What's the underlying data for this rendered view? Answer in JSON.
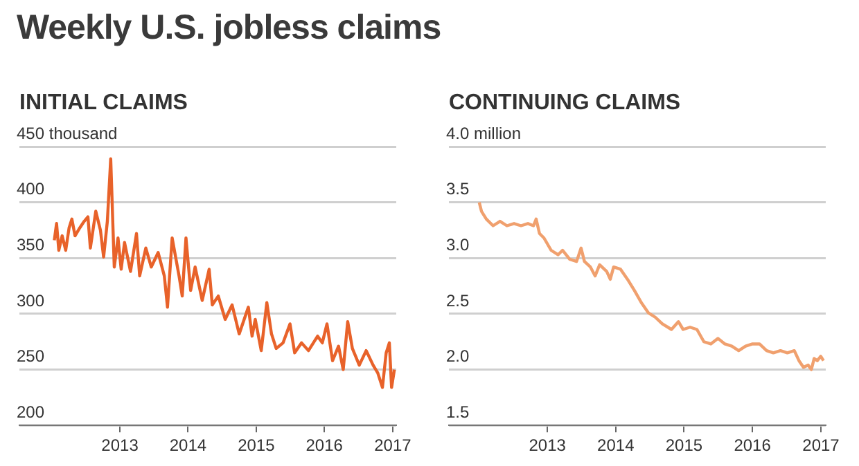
{
  "chart_data": [
    {
      "type": "line",
      "title": "INITIAL CLAIMS",
      "annotations": [
        "Weekly U.S. jobless claims"
      ],
      "color": "#e8622a",
      "grid": "y",
      "legend": false,
      "marker": "none",
      "line_style": "solid",
      "xlim": [
        "2011-07-13",
        "2017-01-20"
      ],
      "xticks": [
        "2013",
        "2014",
        "2015",
        "2016",
        "2017"
      ],
      "ylim": [
        200,
        450
      ],
      "yticks": [
        200,
        250,
        300,
        350,
        400,
        {
          "value": 450,
          "label": "450 thousand"
        }
      ],
      "x": [
        "2012-01-16",
        "2012-01-28",
        "2012-02-09",
        "2012-02-27",
        "2012-03-17",
        "2012-04-04",
        "2012-04-19",
        "2012-05-06",
        "2012-05-31",
        "2012-06-24",
        "2012-07-14",
        "2012-07-27",
        "2012-08-25",
        "2012-09-19",
        "2012-10-06",
        "2012-10-26",
        "2012-11-13",
        "2012-12-02",
        "2012-12-22",
        "2013-01-08",
        "2013-01-26",
        "2013-02-27",
        "2013-03-31",
        "2013-04-17",
        "2013-05-20",
        "2013-06-18",
        "2013-07-25",
        "2013-08-27",
        "2013-09-13",
        "2013-10-08",
        "2013-11-14",
        "2013-12-01",
        "2013-12-21",
        "2014-01-15",
        "2014-02-08",
        "2014-03-18",
        "2014-04-24",
        "2014-05-11",
        "2014-06-12",
        "2014-07-19",
        "2014-08-25",
        "2014-10-02",
        "2014-11-20",
        "2014-12-10",
        "2014-12-27",
        "2015-01-28",
        "2015-02-27",
        "2015-03-24",
        "2015-04-18",
        "2015-05-25",
        "2015-07-01",
        "2015-07-26",
        "2015-09-01",
        "2015-10-08",
        "2015-11-26",
        "2015-12-21",
        "2016-01-15",
        "2016-02-14",
        "2016-03-17",
        "2016-04-11",
        "2016-05-05",
        "2016-05-30",
        "2016-07-06",
        "2016-08-12",
        "2016-09-18",
        "2016-10-13",
        "2016-11-07",
        "2016-11-27",
        "2016-12-14",
        "2016-12-26",
        "2017-01-10"
      ],
      "values": [
        366,
        381,
        357,
        370,
        357,
        377,
        385,
        370,
        377,
        383,
        387,
        359,
        392,
        375,
        351,
        383,
        439,
        342,
        368,
        340,
        364,
        338,
        372,
        334,
        359,
        342,
        355,
        334,
        306,
        368,
        334,
        316,
        368,
        321,
        342,
        312,
        340,
        308,
        316,
        295,
        308,
        282,
        306,
        280,
        295,
        267,
        310,
        282,
        269,
        274,
        291,
        265,
        274,
        267,
        280,
        274,
        291,
        258,
        271,
        250,
        293,
        269,
        254,
        267,
        254,
        247,
        234,
        265,
        274,
        234,
        250
      ]
    },
    {
      "type": "line",
      "title": "CONTINUING CLAIMS",
      "color": "#f0a06e",
      "grid": "y",
      "legend": false,
      "marker": "none",
      "line_style": "solid",
      "xlim": [
        "2011-07-25",
        "2017-01-27"
      ],
      "xticks": [
        "2013",
        "2014",
        "2015",
        "2016",
        "2017"
      ],
      "ylim": [
        1.5,
        4.0
      ],
      "yticks": [
        {
          "value": 1.5,
          "label": "1.5"
        },
        {
          "value": 2,
          "label": "2.0"
        },
        {
          "value": 2.5,
          "label": "2.5"
        },
        {
          "value": 3,
          "label": "3.0"
        },
        {
          "value": 3.5,
          "label": "3.5"
        },
        {
          "value": 4,
          "label": "4.0 million"
        }
      ],
      "x": [
        "2012-01-03",
        "2012-01-15",
        "2012-02-10",
        "2012-03-17",
        "2012-04-23",
        "2012-05-30",
        "2012-07-07",
        "2012-08-13",
        "2012-09-19",
        "2012-10-19",
        "2012-11-02",
        "2012-11-20",
        "2012-12-14",
        "2013-01-21",
        "2013-02-27",
        "2013-03-23",
        "2013-04-30",
        "2013-06-06",
        "2013-06-30",
        "2013-07-18",
        "2013-08-19",
        "2013-09-13",
        "2013-10-07",
        "2013-11-14",
        "2013-12-03",
        "2013-12-21",
        "2014-01-27",
        "2014-03-05",
        "2014-04-11",
        "2014-05-18",
        "2014-06-24",
        "2014-07-31",
        "2014-09-07",
        "2014-10-26",
        "2014-12-02",
        "2014-12-27",
        "2015-02-02",
        "2015-03-11",
        "2015-04-17",
        "2015-05-24",
        "2015-07-01",
        "2015-08-07",
        "2015-09-13",
        "2015-10-20",
        "2015-11-26",
        "2016-01-02",
        "2016-02-08",
        "2016-03-17",
        "2016-04-22",
        "2016-05-30",
        "2016-07-06",
        "2016-08-12",
        "2016-09-06",
        "2016-09-30",
        "2016-10-25",
        "2016-11-11",
        "2016-11-26",
        "2016-12-13",
        "2016-12-31",
        "2017-01-15"
      ],
      "values": [
        3.5,
        3.42,
        3.35,
        3.29,
        3.33,
        3.29,
        3.31,
        3.29,
        3.31,
        3.29,
        3.35,
        3.22,
        3.18,
        3.07,
        3.03,
        3.07,
        2.99,
        2.97,
        3.09,
        2.97,
        2.92,
        2.84,
        2.94,
        2.88,
        2.81,
        2.92,
        2.9,
        2.81,
        2.71,
        2.6,
        2.51,
        2.47,
        2.41,
        2.36,
        2.43,
        2.36,
        2.38,
        2.36,
        2.25,
        2.23,
        2.28,
        2.23,
        2.21,
        2.17,
        2.21,
        2.23,
        2.23,
        2.17,
        2.15,
        2.17,
        2.15,
        2.17,
        2.08,
        2.02,
        2.04,
        2.0,
        2.1,
        2.08,
        2.12,
        2.08
      ]
    }
  ]
}
